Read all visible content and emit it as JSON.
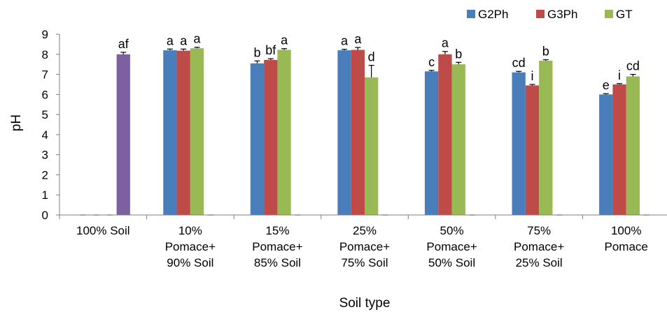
{
  "chart_data": {
    "type": "bar",
    "xlabel": "Soil type",
    "ylabel": "pH",
    "ylim": [
      0,
      9
    ],
    "yticks": [
      "0",
      "1",
      "2",
      "3",
      "4",
      "5",
      "6",
      "7",
      "8",
      "9"
    ],
    "grid": false,
    "legend_position": "top-right",
    "categories": [
      [
        "100% Soil"
      ],
      [
        "10%",
        "Pomace+",
        "90% Soil"
      ],
      [
        "15%",
        "Pomace+",
        "85% Soil"
      ],
      [
        "25%",
        "Pomace+",
        "75% Soil"
      ],
      [
        "50%",
        "Pomace+",
        "50% Soil"
      ],
      [
        "75%",
        "Pomace+",
        "25% Soil"
      ],
      [
        "100%",
        "Pomace"
      ]
    ],
    "series": [
      {
        "name": "G2Ph",
        "color": "#4a7ebb",
        "values": [
          0,
          8.2,
          7.55,
          8.2,
          7.15,
          7.1,
          6.0
        ],
        "errors": [
          0,
          0.06,
          0.12,
          0.05,
          0.05,
          0.05,
          0.04
        ],
        "labels": [
          "",
          "a",
          "b",
          "a",
          "c",
          "cd",
          "e"
        ]
      },
      {
        "name": "G3Ph",
        "color": "#be4b48",
        "values": [
          0,
          8.18,
          7.72,
          8.22,
          8.0,
          6.45,
          6.5
        ],
        "errors": [
          0,
          0.08,
          0.06,
          0.12,
          0.14,
          0.05,
          0.04
        ],
        "labels": [
          "",
          "a",
          "bf",
          "a",
          "a",
          "i",
          "i"
        ]
      },
      {
        "name": "GT",
        "color": "#98b954",
        "values": [
          0,
          8.3,
          8.22,
          6.85,
          7.5,
          7.68,
          6.9
        ],
        "errors": [
          0,
          0.05,
          0.06,
          0.6,
          0.1,
          0.05,
          0.1
        ],
        "labels": [
          "",
          "a",
          "a",
          "d",
          "b",
          "b",
          "cd"
        ]
      }
    ],
    "extra_bar": {
      "category_index": 0,
      "color": "#7d60a0",
      "value": 8.0,
      "error": 0.1,
      "label": "af"
    }
  }
}
